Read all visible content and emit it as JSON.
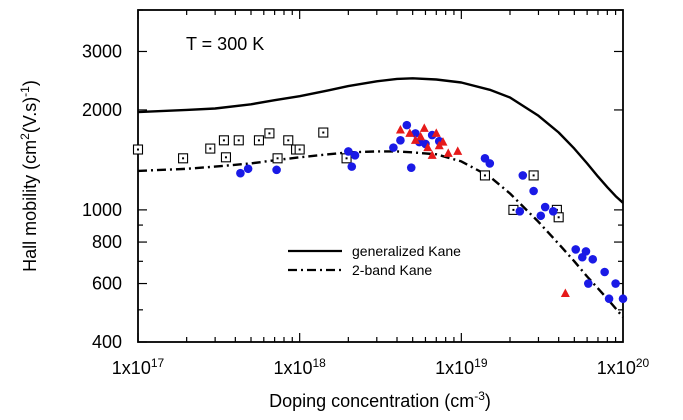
{
  "chart_data": {
    "type": "scatter",
    "annotation": "T = 300 K",
    "xlabel_text": "Doping concentration (cm",
    "xlabel_sup": "-3",
    "xlabel_close": ")",
    "ylabel_text": "Hall mobility (cm",
    "ylabel_sup1": "2",
    "ylabel_mid": "(V.s)",
    "ylabel_sup2": "-1",
    "ylabel_close": ")",
    "x_scale": "log",
    "y_scale": "log",
    "xlim": [
      1e+17,
      1e+20
    ],
    "ylim": [
      400,
      4000
    ],
    "x_ticks": [
      {
        "value": 1e+17,
        "base": "1x10",
        "exp": "17"
      },
      {
        "value": 1e+18,
        "base": "1x10",
        "exp": "18"
      },
      {
        "value": 1e+19,
        "base": "1x10",
        "exp": "19"
      },
      {
        "value": 1e+20,
        "base": "1x10",
        "exp": "20"
      }
    ],
    "y_ticks": [
      {
        "value": 400,
        "label": "400"
      },
      {
        "value": 600,
        "label": "600"
      },
      {
        "value": 800,
        "label": "800"
      },
      {
        "value": 1000,
        "label": "1000"
      },
      {
        "value": 2000,
        "label": "2000"
      },
      {
        "value": 3000,
        "label": "3000"
      }
    ],
    "legend_position": "center",
    "series": [
      {
        "name": "generalized Kane",
        "kind": "line",
        "dash": "solid",
        "x": [
          1e+17,
          2e+17,
          3e+17,
          5e+17,
          7e+17,
          1e+18,
          1.5e+18,
          2e+18,
          3e+18,
          4e+18,
          5e+18,
          7e+18,
          1e+19,
          1.5e+19,
          2e+19,
          3e+19,
          4e+19,
          5e+19,
          6e+19,
          7e+19,
          8e+19,
          9e+19,
          1e+20
        ],
        "y": [
          1970,
          2000,
          2020,
          2080,
          2140,
          2200,
          2290,
          2360,
          2440,
          2480,
          2490,
          2470,
          2420,
          2300,
          2180,
          1920,
          1710,
          1530,
          1380,
          1260,
          1170,
          1100,
          1050
        ]
      },
      {
        "name": "2-band Kane",
        "kind": "line",
        "dash": "dashdot",
        "x": [
          1e+17,
          2e+17,
          3e+17,
          5e+17,
          7e+17,
          1e+18,
          1.5e+18,
          2e+18,
          3e+18,
          4e+18,
          5e+18,
          7e+18,
          1e+19,
          1.5e+19,
          2e+19,
          3e+19,
          4e+19,
          5e+19,
          6e+19,
          7e+19,
          8e+19,
          9e+19,
          1e+20
        ],
        "y": [
          1310,
          1330,
          1350,
          1380,
          1410,
          1440,
          1470,
          1490,
          1500,
          1500,
          1490,
          1470,
          1400,
          1260,
          1120,
          920,
          790,
          700,
          630,
          580,
          540,
          505,
          475
        ]
      },
      {
        "kind": "marker",
        "marker": "open-square",
        "color": "#000000",
        "x": [
          1e+17,
          1.9e+17,
          2.8e+17,
          3.4e+17,
          3.5e+17,
          4.2e+17,
          5.6e+17,
          6.5e+17,
          7.3e+17,
          8.5e+17,
          9.5e+17,
          1e+18,
          1.4e+18,
          1.95e+18,
          1.4e+19,
          2.1e+19,
          2.8e+19,
          3.9e+19,
          4e+19
        ],
        "y": [
          1520,
          1430,
          1530,
          1620,
          1440,
          1620,
          1620,
          1700,
          1430,
          1620,
          1520,
          1520,
          1710,
          1430,
          1270,
          1000,
          1270,
          1000,
          950
        ]
      },
      {
        "kind": "marker",
        "marker": "filled-circle",
        "color": "#1a1ae6",
        "x": [
          4.3e+17,
          4.8e+17,
          7.2e+17,
          2e+18,
          2.1e+18,
          2.2e+18,
          3.8e+18,
          4.2e+18,
          4.6e+18,
          4.9e+18,
          5.2e+18,
          5.5e+18,
          6e+18,
          6.6e+18,
          7.3e+18,
          1.4e+19,
          1.5e+19,
          2.3e+19,
          2.4e+19,
          2.8e+19,
          3.1e+19,
          3.3e+19,
          3.7e+19,
          5.1e+19,
          5.6e+19,
          5.9e+19,
          6.1e+19,
          6.5e+19,
          7.7e+19,
          8.2e+19,
          9e+19,
          1e+20
        ],
        "y": [
          1290,
          1330,
          1320,
          1500,
          1350,
          1460,
          1540,
          1620,
          1800,
          1340,
          1700,
          1600,
          1580,
          1680,
          1610,
          1430,
          1380,
          990,
          1270,
          1140,
          960,
          1020,
          990,
          760,
          720,
          750,
          600,
          710,
          650,
          540,
          600,
          540
        ]
      },
      {
        "kind": "marker",
        "marker": "filled-triangle",
        "color": "#e61a1a",
        "x": [
          4.2e+18,
          4.8e+18,
          5.2e+18,
          5.6e+18,
          5.9e+18,
          6.2e+18,
          6.6e+18,
          7e+18,
          7.3e+18,
          7.7e+18,
          8.3e+18,
          9.5e+18,
          4.4e+19
        ],
        "y": [
          1740,
          1700,
          1620,
          1660,
          1760,
          1540,
          1460,
          1700,
          1560,
          1600,
          1480,
          1500,
          560
        ]
      }
    ]
  }
}
